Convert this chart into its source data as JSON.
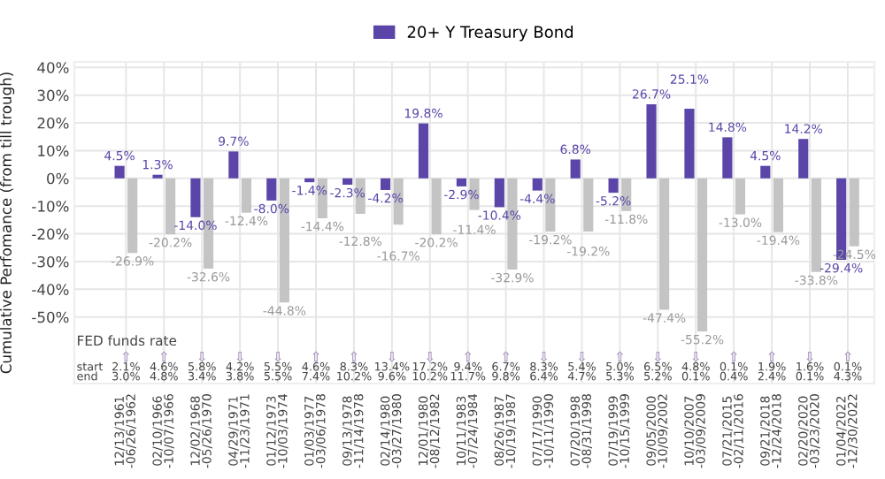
{
  "chart_data": {
    "type": "bar",
    "ylabel": "Cumulative Perfomance (from till trough)",
    "categories": [
      "12/13/1961\n-06/26/1962",
      "02/10/1966\n-10/07/1966",
      "12/02/1968\n-05/26/1970",
      "04/29/1971\n-11/23/1971",
      "01/12/1973\n-10/03/1974",
      "01/03/1977\n-03/06/1978",
      "09/13/1978\n-11/14/1978",
      "02/14/1980\n-03/27/1980",
      "12/01/1980\n-08/12/1982",
      "10/11/1983\n-07/24/1984",
      "08/26/1987\n-10/19/1987",
      "07/17/1990\n-10/11/1990",
      "07/20/1998\n-08/31/1998",
      "07/19/1999\n-10/15/1999",
      "09/05/2000\n-10/09/2002",
      "10/10/2007\n-03/09/2009",
      "07/21/2015\n-02/11/2016",
      "09/21/2018\n-12/24/2018",
      "02/20/2020\n-03/23/2020",
      "01/04/2022\n-12/30/2022"
    ],
    "series": [
      {
        "name": "20+ Y Treasury Bond",
        "color": "#5b45a8",
        "values": [
          4.5,
          1.3,
          -14.0,
          9.7,
          -8.0,
          -1.4,
          -2.3,
          -4.2,
          19.8,
          -2.9,
          -10.4,
          -4.4,
          6.8,
          -5.2,
          26.7,
          25.1,
          14.8,
          4.5,
          14.2,
          -29.4
        ],
        "value_labels": [
          "4.5%",
          "1.3%",
          "-14.0%",
          "9.7%",
          "-8.0%",
          "-1.4%",
          "-2.3%",
          "-4.2%",
          "19.8%",
          "-2.9%",
          "-10.4%",
          "-4.4%",
          "6.8%",
          "-5.2%",
          "26.7%",
          "25.1%",
          "14.8%",
          "4.5%",
          "14.2%",
          "-29.4%"
        ]
      },
      {
        "color": "#c4c4c4",
        "values": [
          -26.9,
          -20.2,
          -32.6,
          -12.4,
          -44.8,
          -14.4,
          -12.8,
          -16.7,
          -20.2,
          -11.4,
          -32.9,
          -19.2,
          -19.2,
          -11.8,
          -47.4,
          -55.2,
          -13.0,
          -19.4,
          -33.8,
          -24.5
        ],
        "value_labels": [
          "-26.9%",
          "-20.2%",
          "-32.6%",
          "-12.4%",
          "-44.8%",
          "-14.4%",
          "-12.8%",
          "-16.7%",
          "-20.2%",
          "-11.4%",
          "-32.9%",
          "-19.2%",
          "-19.2%",
          "-11.8%",
          "-47.4%",
          "-55.2%",
          "-13.0%",
          "-19.4%",
          "-33.8%",
          "-24.5%"
        ]
      }
    ],
    "ylim": [
      -74,
      42
    ],
    "data_labels": true,
    "yticks": [
      {
        "value": -50,
        "label": "-50%"
      },
      {
        "value": -40,
        "label": "-40%"
      },
      {
        "value": -30,
        "label": "-30%"
      },
      {
        "value": -20,
        "label": "-20%"
      },
      {
        "value": -10,
        "label": "-10%"
      },
      {
        "value": 0,
        "label": "0%"
      },
      {
        "value": 10,
        "label": "10%"
      },
      {
        "value": 20,
        "label": "20%"
      },
      {
        "value": 30,
        "label": "30%"
      },
      {
        "value": 40,
        "label": "40%"
      }
    ],
    "grid": true,
    "legend": "top",
    "annotations": [
      "FED funds rate",
      "start",
      "end",
      "⇧",
      "2.1%",
      "3.0%",
      "⇧",
      "4.6%",
      "4.8%",
      "⇩",
      "5.8%",
      "3.4%",
      "⇩",
      "4.2%",
      "3.8%",
      "⇩",
      "5.5%",
      "5.5%",
      "⇧",
      "4.6%",
      "7.4%",
      "⇧",
      "8.3%",
      "10.2%",
      "⇩",
      "13.4%",
      "9.6%",
      "⇩",
      "17.2%",
      "10.2%",
      "⇧",
      "9.4%",
      "11.7%",
      "⇧",
      "6.7%",
      "9.8%",
      "⇩",
      "8.3%",
      "6.4%",
      "⇩",
      "5.4%",
      "4.7%",
      "⇧",
      "5.0%",
      "5.3%",
      "⇩",
      "6.5%",
      "5.2%",
      "⇩",
      "4.8%",
      "0.1%",
      "⇧",
      "0.1%",
      "0.4%",
      "⇧",
      "1.9%",
      "2.4%",
      "⇩",
      "1.6%",
      "0.1%",
      "⇧",
      "0.1%",
      "4.3%"
    ]
  }
}
